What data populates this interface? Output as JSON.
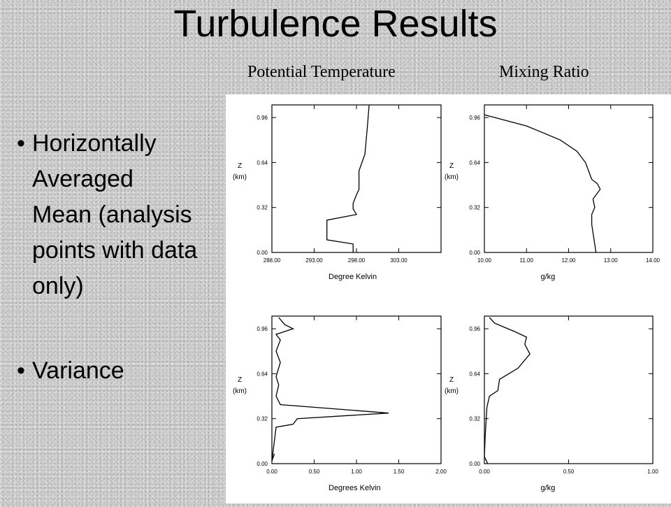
{
  "title": "Turbulence Results",
  "column_labels": {
    "left": "Potential Temperature",
    "right": "Mixing Ratio"
  },
  "bullets": [
    "Horizontally Averaged Mean (analysis points with data only)",
    "Variance"
  ],
  "chart_data": [
    {
      "type": "line",
      "name": "mean-potential-temperature",
      "xlabel": "Degree Kelvin",
      "ylabel": "Z\n(km)",
      "xlim": [
        288,
        308
      ],
      "ylim": [
        0,
        1.05
      ],
      "xticks": [
        "288.00",
        "293.00",
        "298.00",
        "303.00"
      ],
      "xtick_values": [
        288,
        293,
        298,
        303
      ],
      "yticks": [
        "0.00",
        "0.32",
        "0.64",
        "0.96"
      ],
      "ytick_values": [
        0,
        0.32,
        0.64,
        0.96
      ],
      "x": [
        297.6,
        297.6,
        294.5,
        294.5,
        298.0,
        297.6,
        297.6,
        298.0,
        298.3,
        298.3,
        299.0,
        299.3,
        299.5
      ],
      "y": [
        0.0,
        0.06,
        0.09,
        0.23,
        0.27,
        0.31,
        0.35,
        0.41,
        0.45,
        0.58,
        0.7,
        0.9,
        1.05
      ]
    },
    {
      "type": "line",
      "name": "mean-mixing-ratio",
      "xlabel": "g/kg",
      "ylabel": "Z\n(km)",
      "xlim": [
        10,
        14
      ],
      "ylim": [
        0,
        1.05
      ],
      "xticks": [
        "10.00",
        "11.00",
        "12.00",
        "13.00",
        "14.00"
      ],
      "xtick_values": [
        10,
        11,
        12,
        13,
        14
      ],
      "yticks": [
        "0.00",
        "0.32",
        "0.64",
        "0.96"
      ],
      "ytick_values": [
        0,
        0.32,
        0.64,
        0.96
      ],
      "x": [
        12.65,
        12.6,
        12.55,
        12.55,
        12.62,
        12.58,
        12.75,
        12.68,
        12.55,
        12.45,
        12.4,
        12.2,
        11.8,
        11.0,
        10.0
      ],
      "y": [
        0.0,
        0.1,
        0.2,
        0.27,
        0.32,
        0.38,
        0.45,
        0.49,
        0.52,
        0.6,
        0.64,
        0.72,
        0.8,
        0.9,
        0.98
      ]
    },
    {
      "type": "line",
      "name": "variance-potential-temperature",
      "xlabel": "Degrees Kelvin",
      "ylabel": "Z\n(km)",
      "xlim": [
        0,
        2
      ],
      "ylim": [
        0,
        1.05
      ],
      "xticks": [
        "0.00",
        "0.50",
        "1.00",
        "1.50",
        "2.00"
      ],
      "xtick_values": [
        0,
        0.5,
        1.0,
        1.5,
        2.0
      ],
      "yticks": [
        "0.00",
        "0.32",
        "0.64",
        "0.96"
      ],
      "ytick_values": [
        0,
        0.32,
        0.64,
        0.96
      ],
      "x": [
        0.03,
        0.0,
        0.05,
        0.25,
        0.3,
        1.38,
        0.1,
        0.05,
        0.08,
        0.05,
        0.1,
        0.05,
        0.1,
        0.05,
        0.25,
        0.15,
        0.08
      ],
      "y": [
        0.07,
        0.02,
        0.26,
        0.28,
        0.32,
        0.36,
        0.42,
        0.48,
        0.56,
        0.62,
        0.72,
        0.8,
        0.88,
        0.92,
        0.96,
        0.99,
        1.04
      ]
    },
    {
      "type": "line",
      "name": "variance-mixing-ratio",
      "xlabel": "g/kg",
      "ylabel": "Z\n(km)",
      "xlim": [
        0,
        1
      ],
      "ylim": [
        0,
        1.05
      ],
      "xticks": [
        "0.00",
        "0.50",
        "1.00"
      ],
      "xtick_values": [
        0,
        0.5,
        1.0
      ],
      "yticks": [
        "0.00",
        "0.32",
        "0.64",
        "0.96"
      ],
      "ytick_values": [
        0,
        0.32,
        0.64,
        0.96
      ],
      "x": [
        0.02,
        0.0,
        0.005,
        0.01,
        0.015,
        0.03,
        0.08,
        0.09,
        0.2,
        0.27,
        0.24,
        0.25,
        0.18,
        0.12,
        0.06,
        0.03
      ],
      "y": [
        0.0,
        0.05,
        0.2,
        0.3,
        0.4,
        0.48,
        0.52,
        0.6,
        0.68,
        0.78,
        0.85,
        0.9,
        0.94,
        0.97,
        1.0,
        1.04
      ]
    }
  ]
}
